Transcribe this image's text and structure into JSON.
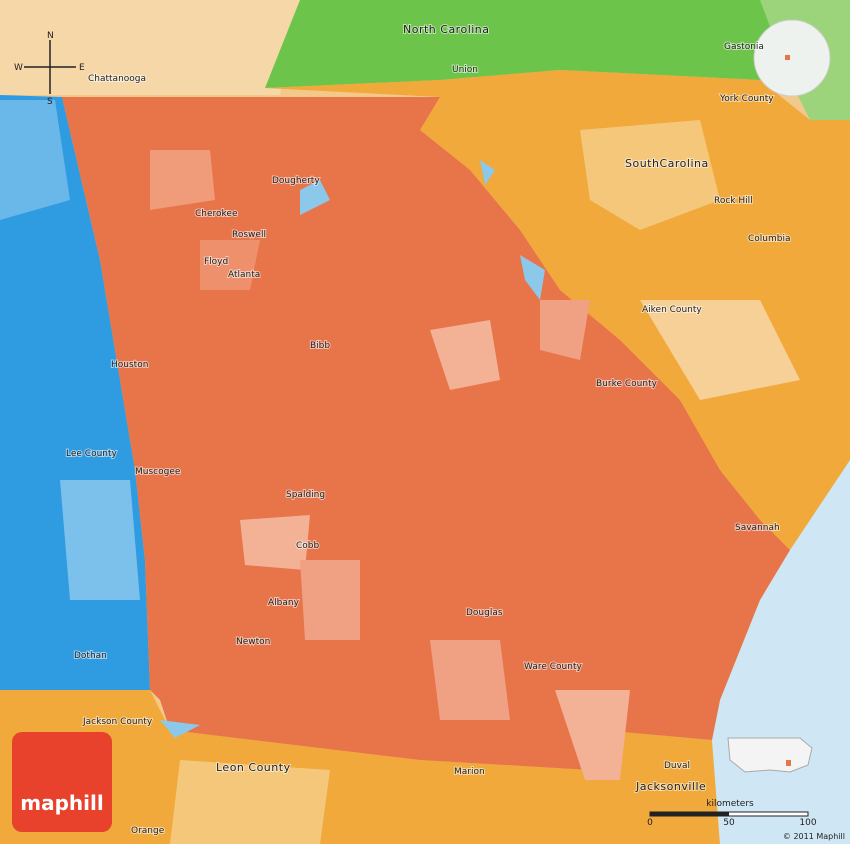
{
  "map": {
    "compass": {
      "n": "N",
      "s": "S",
      "e": "E",
      "w": "W"
    },
    "labels": {
      "north_carolina": "North Carolina",
      "union": "Union",
      "gastonia": "Gastonia",
      "chattanooga": "Chattanooga",
      "york_county": "York County",
      "south_carolina": "SouthCarolina",
      "rock_hill": "Rock Hill",
      "columbia": "Columbia",
      "aiken_county": "Aiken County",
      "burke_county": "Burke County",
      "savannah": "Savannah",
      "dougherty": "Dougherty",
      "cherokee": "Cherokee",
      "roswell": "Roswell",
      "floyd": "Floyd",
      "atlanta": "Atlanta",
      "bibb": "Bibb",
      "houston": "Houston",
      "lee_county": "Lee County",
      "muscogee": "Muscogee",
      "spalding": "Spalding",
      "cobb": "Cobb",
      "albany": "Albany",
      "newton": "Newton",
      "douglas": "Douglas",
      "ware_county": "Ware County",
      "dothan": "Dothan",
      "jackson_county": "Jackson County",
      "leon_county": "Leon County",
      "marion": "Marion",
      "duval": "Duval",
      "jacksonville": "Jacksonville",
      "orange": "Orange"
    },
    "logo": "maphill",
    "scale": {
      "unit": "kilometers",
      "ticks": [
        0,
        50,
        100
      ]
    },
    "copyright": "© 2011 Maphill"
  }
}
